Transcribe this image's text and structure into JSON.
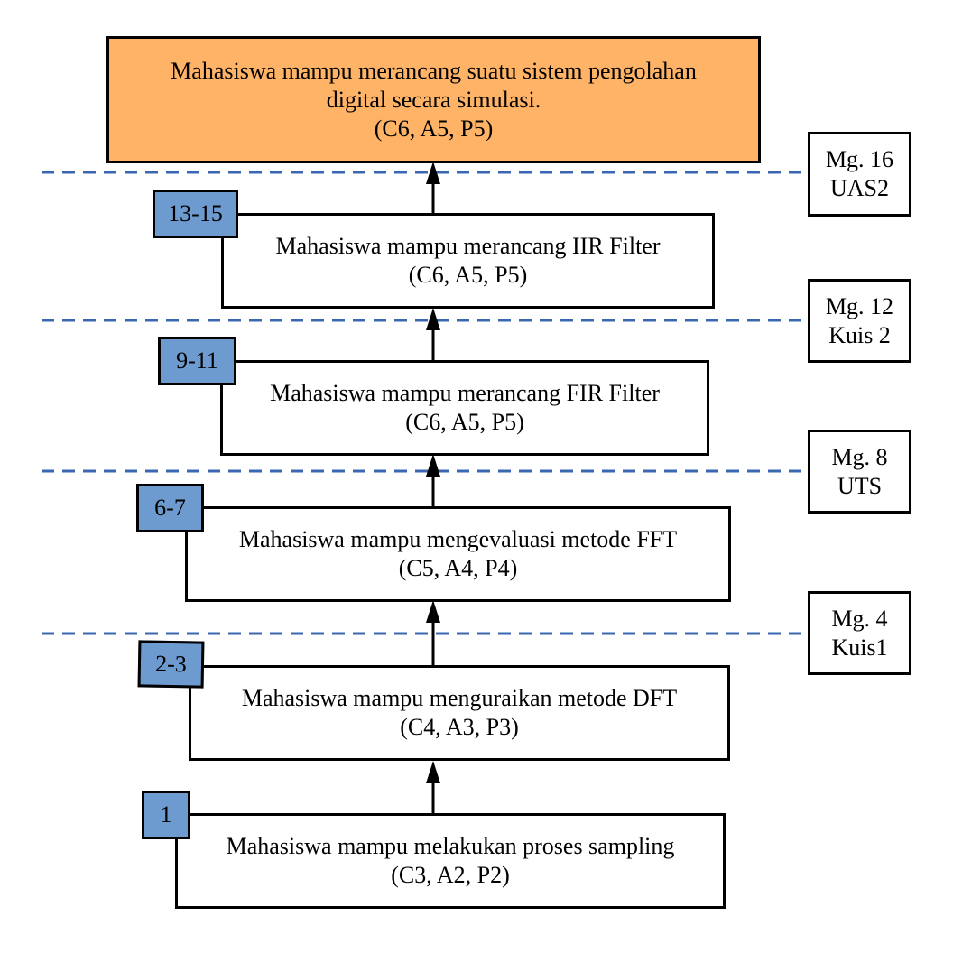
{
  "goal": {
    "line1": "Mahasiswa mampu merancang suatu sistem pengolahan",
    "line2": "digital secara simulasi.",
    "line3": "(C6, A5, P5)",
    "color": "#FFB366"
  },
  "steps": [
    {
      "weeks": "13-15",
      "text": "Mahasiswa mampu merancang IIR Filter",
      "codes": "(C6, A5, P5)"
    },
    {
      "weeks": "9-11",
      "text": "Mahasiswa mampu merancang FIR Filter",
      "codes": "(C6, A5, P5)"
    },
    {
      "weeks": "6-7",
      "text": "Mahasiswa mampu mengevaluasi metode FFT",
      "codes": "(C5, A4, P4)"
    },
    {
      "weeks": "2-3",
      "text": "Mahasiswa mampu menguraikan metode DFT",
      "codes": "(C4, A3, P3)"
    },
    {
      "weeks": "1",
      "text": "Mahasiswa mampu melakukan proses sampling",
      "codes": "(C3, A2, P2)"
    }
  ],
  "milestones": [
    {
      "week": "Mg. 16",
      "label": "UAS2"
    },
    {
      "week": "Mg. 12",
      "label": "Kuis 2"
    },
    {
      "week": "Mg. 8",
      "label": "UTS"
    },
    {
      "week": "Mg. 4",
      "label": "Kuis1"
    }
  ],
  "colors": {
    "badge": "#6E9BCF",
    "dashed_line": "#3A68B0",
    "goal": "#FFB366"
  }
}
